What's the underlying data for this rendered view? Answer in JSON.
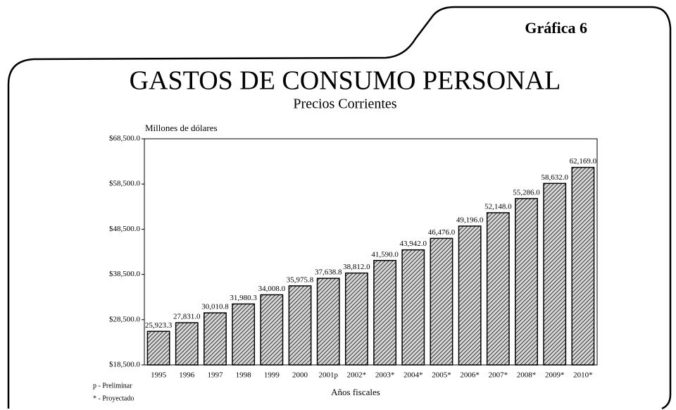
{
  "badge": "Gráfica 6",
  "chart_data": {
    "type": "bar",
    "title": "GASTOS DE CONSUMO PERSONAL",
    "subtitle": "Precios Corrientes",
    "y_label": "Millones de dólares",
    "x_label": "Años fiscales",
    "notes": [
      "p - Preliminar",
      "* - Proyectado"
    ],
    "categories": [
      "1995",
      "1996",
      "1997",
      "1998",
      "1999",
      "2000",
      "2001p",
      "2002*",
      "2003*",
      "2004*",
      "2005*",
      "2006*",
      "2007*",
      "2008*",
      "2009*",
      "2010*"
    ],
    "values": [
      25923.3,
      27831.0,
      30010.8,
      31980.3,
      34008.0,
      35975.8,
      37638.8,
      38812.0,
      41590.0,
      43942.0,
      46476.0,
      49196.0,
      52148.0,
      55286.0,
      58632.0,
      62169.0
    ],
    "value_labels": [
      "25,923.3",
      "27,831.0",
      "30,010.8",
      "31,980.3",
      "34,008.0",
      "35,975.8",
      "37,638.8",
      "38,812.0",
      "41,590.0",
      "43,942.0",
      "46,476.0",
      "49,196.0",
      "52,148.0",
      "55,286.0",
      "58,632.0",
      "62,169.0"
    ],
    "color": "#333333",
    "ylim": [
      18500,
      68500
    ],
    "yticks": [
      {
        "value": 18500,
        "label": "$18,500.0"
      },
      {
        "value": 28500,
        "label": "$28,500.0"
      },
      {
        "value": 38500,
        "label": "$38,500.0"
      },
      {
        "value": 48500,
        "label": "$48,500.0"
      },
      {
        "value": 58500,
        "label": "$58,500.0"
      },
      {
        "value": 68500,
        "label": "$68,500.0"
      }
    ]
  }
}
